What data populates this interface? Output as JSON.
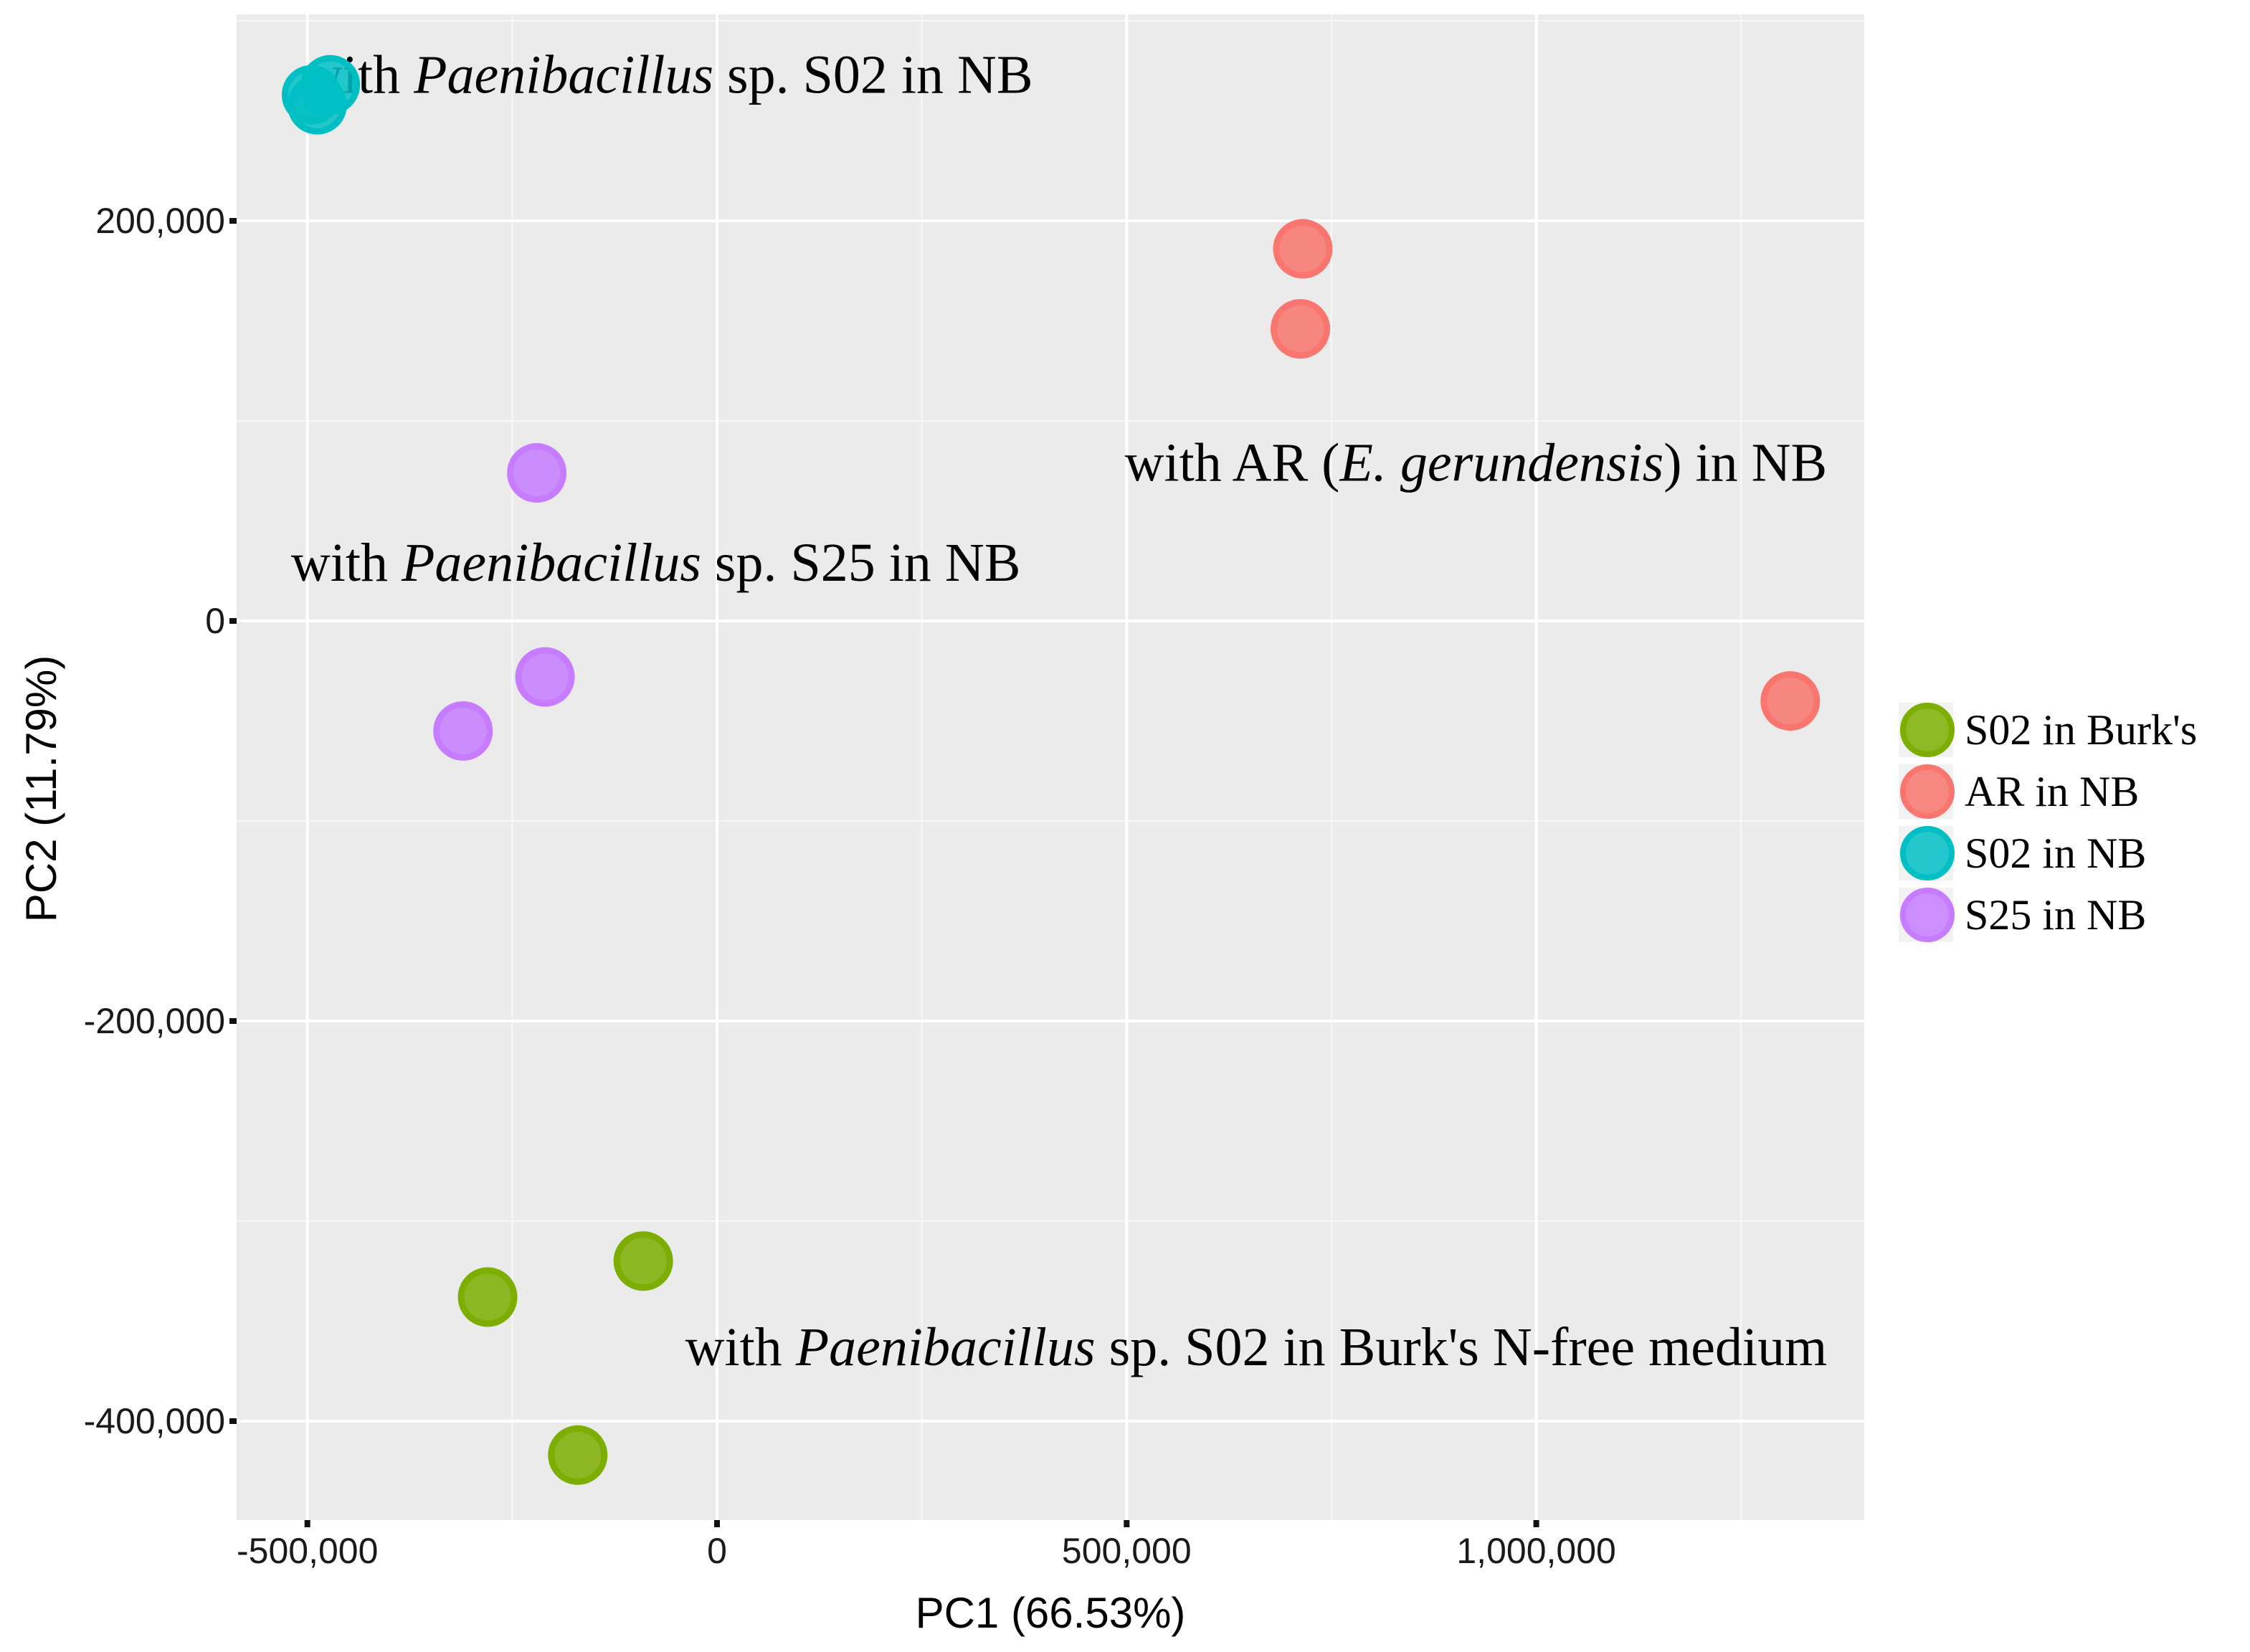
{
  "chart_data": {
    "type": "scatter",
    "xlabel": "PC1 (66.53%)",
    "ylabel": "PC2 (11.79%)",
    "xlim": [
      -600000,
      1400000
    ],
    "ylim": [
      -440000,
      300000
    ],
    "x_ticks": [
      {
        "value": -500000,
        "label": "-500,000"
      },
      {
        "value": 0,
        "label": "0"
      },
      {
        "value": 500000,
        "label": "500,000"
      },
      {
        "value": 1000000,
        "label": "1,000,000"
      }
    ],
    "y_ticks": [
      {
        "value": 200000,
        "label": "200,000"
      },
      {
        "value": 0,
        "label": "0"
      },
      {
        "value": -200000,
        "label": "-200,000"
      },
      {
        "value": -400000,
        "label": "-400,000"
      }
    ],
    "grid": true,
    "legend_position": "right",
    "series": [
      {
        "name": "S02 in Burk's",
        "color": "#7CAE00",
        "points": [
          {
            "x": -90000,
            "y": -320000
          },
          {
            "x": -280000,
            "y": -338000
          },
          {
            "x": -170000,
            "y": -417000
          }
        ]
      },
      {
        "name": "AR in NB",
        "color": "#F8766D",
        "points": [
          {
            "x": 715000,
            "y": 186000
          },
          {
            "x": 712000,
            "y": 146000
          },
          {
            "x": 1310000,
            "y": -40000
          }
        ]
      },
      {
        "name": "S02 in NB",
        "color": "#00BFC4",
        "points": [
          {
            "x": -472000,
            "y": 268000
          },
          {
            "x": -495000,
            "y": 263000
          },
          {
            "x": -488000,
            "y": 258000
          }
        ]
      },
      {
        "name": "S25 in NB",
        "color": "#C77CFF",
        "points": [
          {
            "x": -220000,
            "y": 74000
          },
          {
            "x": -210000,
            "y": -28000
          },
          {
            "x": -310000,
            "y": -55000
          }
        ]
      }
    ],
    "annotations": [
      {
        "id": "s02-nb",
        "anchor": "start",
        "x": -505000,
        "y": 264000,
        "parts": [
          {
            "text": "with ",
            "italic": false
          },
          {
            "text": "Paenibacillus",
            "italic": true
          },
          {
            "text": " sp. S02 in NB",
            "italic": false
          }
        ]
      },
      {
        "id": "ar-nb",
        "anchor": "end",
        "x": 1355000,
        "y": 70000,
        "parts": [
          {
            "text": "with AR (",
            "italic": false
          },
          {
            "text": "E. gerundensis",
            "italic": true
          },
          {
            "text": ") in NB",
            "italic": false
          }
        ]
      },
      {
        "id": "s25-nb",
        "anchor": "start",
        "x": -520000,
        "y": 20000,
        "parts": [
          {
            "text": "with ",
            "italic": false
          },
          {
            "text": "Paenibacillus",
            "italic": true
          },
          {
            "text": " sp. S25 in NB",
            "italic": false
          }
        ]
      },
      {
        "id": "s02-burks",
        "anchor": "end",
        "x": 1355000,
        "y": -372000,
        "parts": [
          {
            "text": "with ",
            "italic": false
          },
          {
            "text": "Paenibacillus",
            "italic": true
          },
          {
            "text": " sp. S02 in Burk's N-free medium",
            "italic": false
          }
        ]
      }
    ]
  }
}
